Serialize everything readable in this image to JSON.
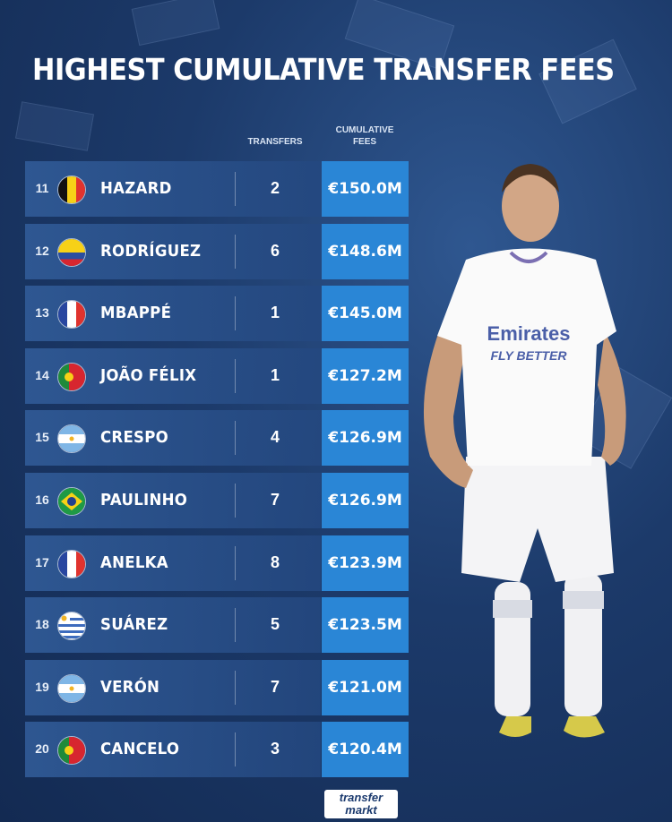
{
  "title": "HIGHEST CUMULATIVE TRANSFER FEES",
  "columns": {
    "transfers": "TRANSFERS",
    "fees": "CUMULATIVE FEES"
  },
  "logo": {
    "line1": "transfer",
    "line2": "markt"
  },
  "chart_data": {
    "type": "table",
    "title": "HIGHEST CUMULATIVE TRANSFER FEES",
    "columns": [
      "",
      "",
      "TRANSFERS",
      "CUMULATIVE FEES"
    ],
    "rows": [
      {
        "rank": "11",
        "name": "HAZARD",
        "flag": "belgium",
        "transfers": "2",
        "fee": "€150.0M",
        "fee_value": 150.0
      },
      {
        "rank": "12",
        "name": "RODRÍGUEZ",
        "flag": "colombia",
        "transfers": "6",
        "fee": "€148.6M",
        "fee_value": 148.6
      },
      {
        "rank": "13",
        "name": "MBAPPÉ",
        "flag": "france",
        "transfers": "1",
        "fee": "€145.0M",
        "fee_value": 145.0
      },
      {
        "rank": "14",
        "name": "JOÃO FÉLIX",
        "flag": "portugal",
        "transfers": "1",
        "fee": "€127.2M",
        "fee_value": 127.2
      },
      {
        "rank": "15",
        "name": "CRESPO",
        "flag": "argentina",
        "transfers": "4",
        "fee": "€126.9M",
        "fee_value": 126.9
      },
      {
        "rank": "16",
        "name": "PAULINHO",
        "flag": "brazil",
        "transfers": "7",
        "fee": "€126.9M",
        "fee_value": 126.9
      },
      {
        "rank": "17",
        "name": "ANELKA",
        "flag": "france",
        "transfers": "8",
        "fee": "€123.9M",
        "fee_value": 123.9
      },
      {
        "rank": "18",
        "name": "SUÁREZ",
        "flag": "uruguay",
        "transfers": "5",
        "fee": "€123.5M",
        "fee_value": 123.5
      },
      {
        "rank": "19",
        "name": "VERÓN",
        "flag": "argentina",
        "transfers": "7",
        "fee": "€121.0M",
        "fee_value": 121.0
      },
      {
        "rank": "20",
        "name": "CANCELO",
        "flag": "portugal",
        "transfers": "3",
        "fee": "€120.4M",
        "fee_value": 120.4
      }
    ]
  },
  "colors": {
    "background": "#1c3a6a",
    "row_band": "#305a96",
    "fee_cell": "#2a86d6"
  }
}
